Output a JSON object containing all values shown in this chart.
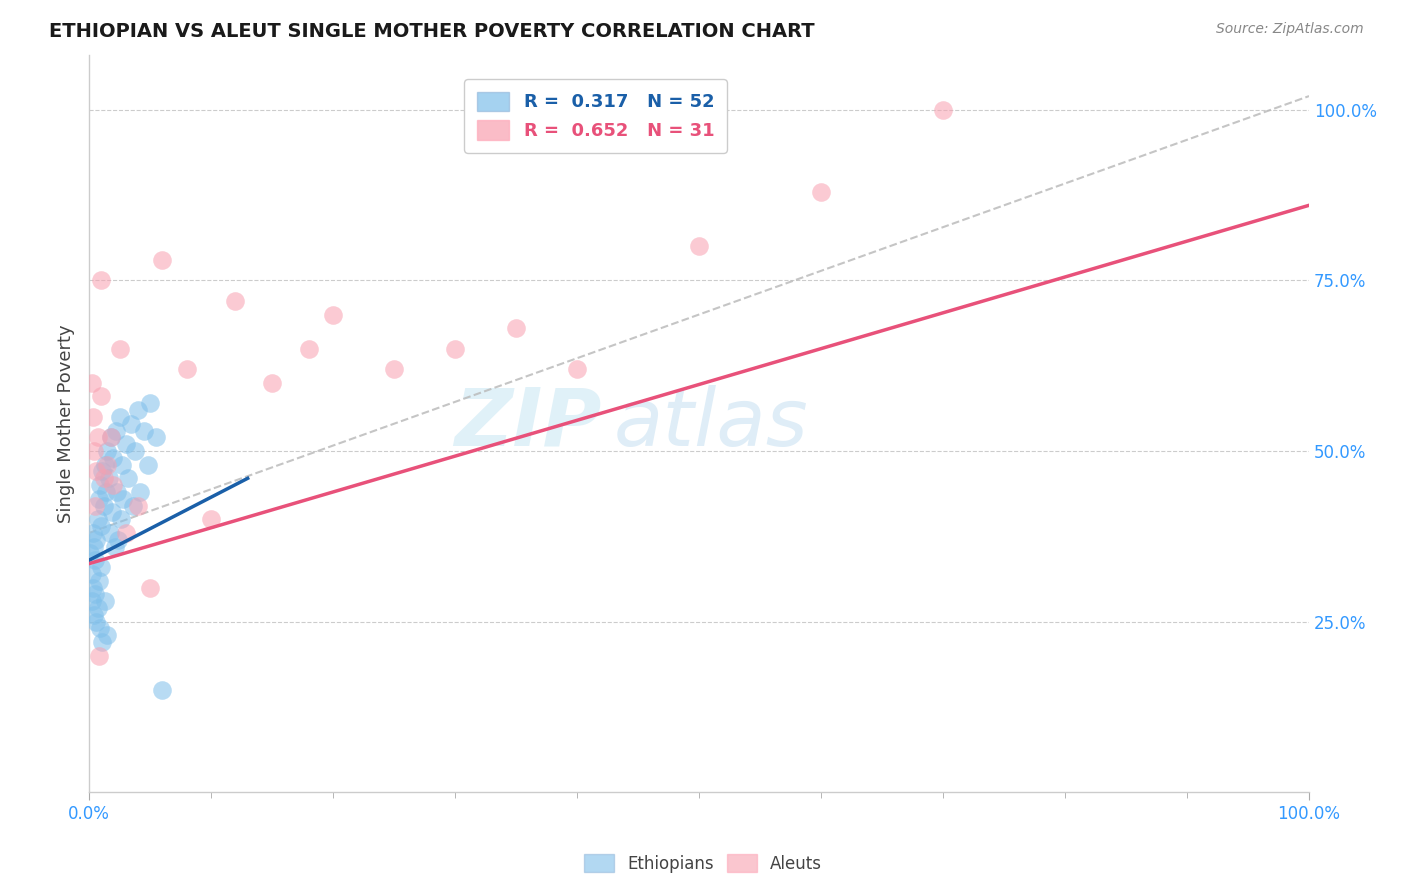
{
  "title": "ETHIOPIAN VS ALEUT SINGLE MOTHER POVERTY CORRELATION CHART",
  "source": "Source: ZipAtlas.com",
  "ylabel": "Single Mother Poverty",
  "legend_entries": [
    {
      "label": "R =  0.317   N = 52",
      "color": "#7fbfea"
    },
    {
      "label": "R =  0.652   N = 31",
      "color": "#f8a0b0"
    }
  ],
  "legend_labels_bottom": [
    "Ethiopians",
    "Aleuts"
  ],
  "ethiopian_color": "#7fbfea",
  "aleut_color": "#f8a0b0",
  "ethiopian_line_color": "#1a5fa8",
  "aleut_line_color": "#e8517a",
  "dash_line_color": "#bbbbbb",
  "ethiopian_x": [
    0.001,
    0.002,
    0.002,
    0.003,
    0.003,
    0.004,
    0.004,
    0.005,
    0.005,
    0.006,
    0.006,
    0.007,
    0.007,
    0.008,
    0.008,
    0.009,
    0.009,
    0.01,
    0.01,
    0.011,
    0.011,
    0.012,
    0.013,
    0.013,
    0.014,
    0.015,
    0.015,
    0.016,
    0.017,
    0.018,
    0.019,
    0.02,
    0.021,
    0.022,
    0.023,
    0.024,
    0.025,
    0.026,
    0.027,
    0.028,
    0.03,
    0.032,
    0.034,
    0.036,
    0.038,
    0.04,
    0.042,
    0.045,
    0.048,
    0.05,
    0.055,
    0.06
  ],
  "ethiopian_y": [
    0.35,
    0.32,
    0.28,
    0.38,
    0.3,
    0.36,
    0.26,
    0.34,
    0.29,
    0.37,
    0.25,
    0.4,
    0.27,
    0.43,
    0.31,
    0.45,
    0.24,
    0.39,
    0.33,
    0.47,
    0.22,
    0.42,
    0.48,
    0.28,
    0.44,
    0.5,
    0.23,
    0.46,
    0.38,
    0.52,
    0.41,
    0.49,
    0.36,
    0.53,
    0.44,
    0.37,
    0.55,
    0.4,
    0.48,
    0.43,
    0.51,
    0.46,
    0.54,
    0.42,
    0.5,
    0.56,
    0.44,
    0.53,
    0.48,
    0.57,
    0.52,
    0.15
  ],
  "aleut_x": [
    0.002,
    0.003,
    0.004,
    0.005,
    0.006,
    0.007,
    0.008,
    0.01,
    0.012,
    0.015,
    0.018,
    0.02,
    0.025,
    0.03,
    0.04,
    0.05,
    0.06,
    0.08,
    0.1,
    0.12,
    0.15,
    0.18,
    0.2,
    0.25,
    0.3,
    0.35,
    0.4,
    0.5,
    0.6,
    0.7,
    0.01
  ],
  "aleut_y": [
    0.6,
    0.55,
    0.5,
    0.42,
    0.47,
    0.52,
    0.2,
    0.58,
    0.46,
    0.48,
    0.52,
    0.45,
    0.65,
    0.38,
    0.42,
    0.3,
    0.78,
    0.62,
    0.4,
    0.72,
    0.6,
    0.65,
    0.7,
    0.62,
    0.65,
    0.68,
    0.62,
    0.8,
    0.88,
    1.0,
    0.75
  ],
  "eth_line_x": [
    0.0,
    0.13
  ],
  "eth_line_y": [
    0.34,
    0.46
  ],
  "aleut_line_x": [
    0.0,
    1.0
  ],
  "aleut_line_y": [
    0.335,
    0.86
  ],
  "dash_line_x": [
    0.0,
    1.0
  ],
  "dash_line_y": [
    0.38,
    1.02
  ],
  "xlim": [
    0.0,
    1.0
  ],
  "ylim": [
    0.0,
    1.08
  ],
  "yticks": [
    0.25,
    0.5,
    0.75,
    1.0
  ],
  "ytick_labels": [
    "25.0%",
    "50.0%",
    "75.0%",
    "100.0%"
  ],
  "xticks_major": [
    0.0,
    1.0
  ],
  "xtick_labels": [
    "0.0%",
    "100.0%"
  ],
  "xticks_minor": [
    0.1,
    0.2,
    0.3,
    0.4,
    0.5,
    0.6,
    0.7,
    0.8,
    0.9
  ],
  "tick_color": "#3399ff",
  "grid_color": "#cccccc",
  "title_fontsize": 14,
  "source_fontsize": 10,
  "legend_fontsize": 13,
  "marker_size": 180,
  "marker_alpha": 0.55
}
